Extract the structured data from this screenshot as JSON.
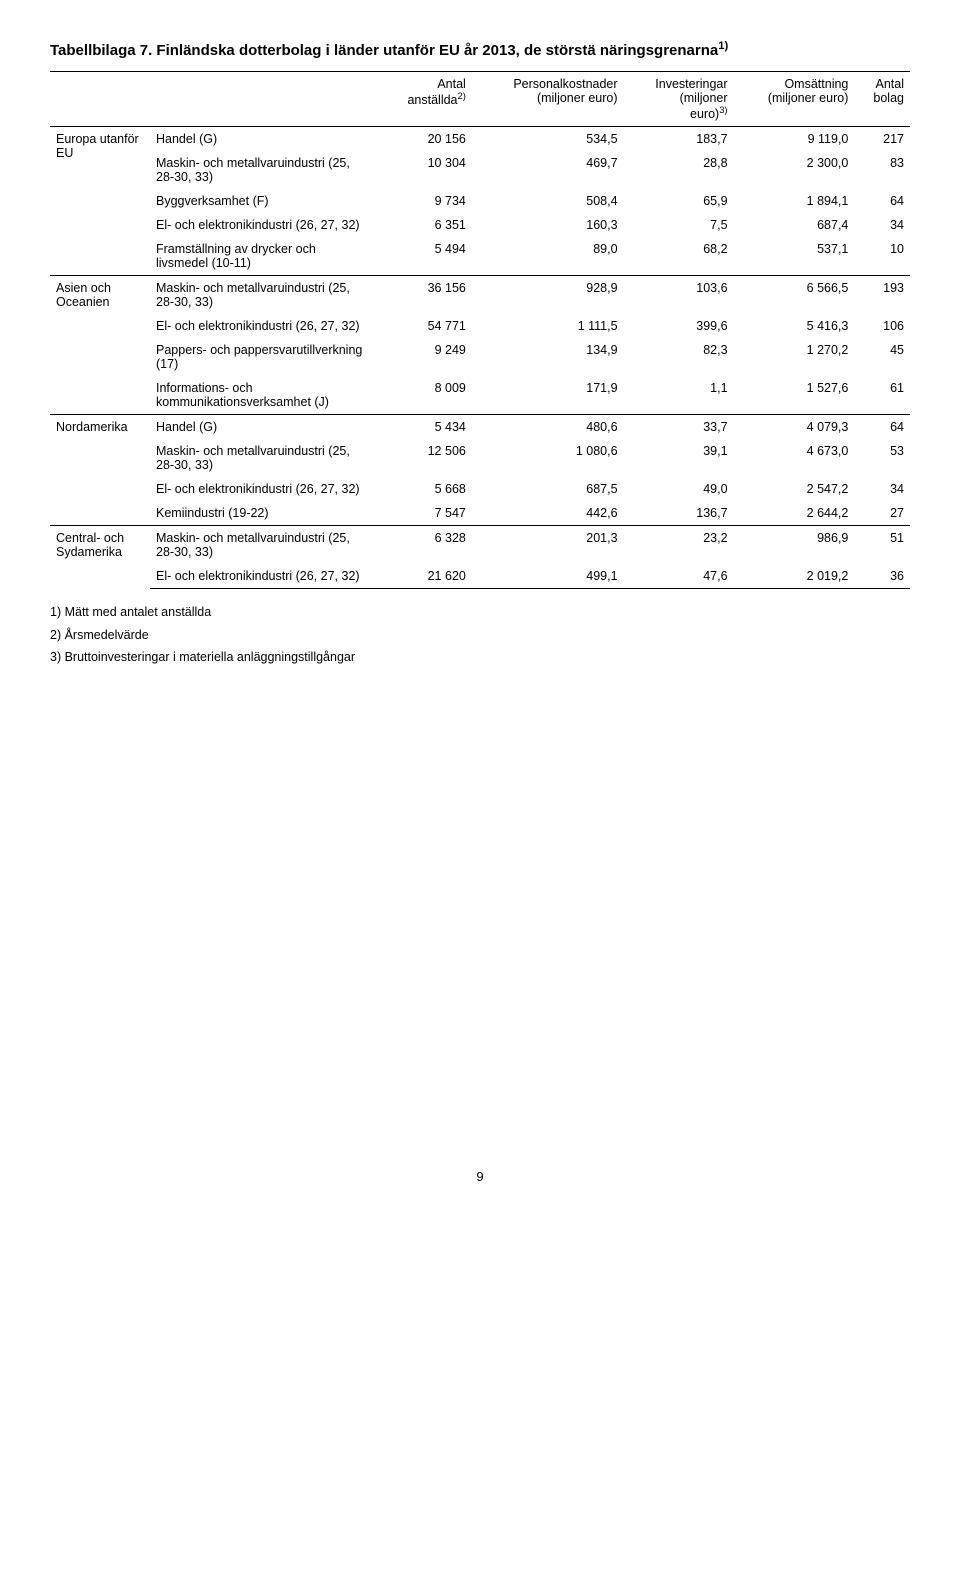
{
  "title_prefix": "Tabellbilaga 7. Finländska dotterbolag i länder utanför EU år 2013, de störstä näringsgrenarna",
  "title_sup": "1)",
  "columns": {
    "c2_line1": "Antal",
    "c2_line2": "anställda",
    "c2_sup": "2)",
    "c3_line1": "Personalkostnader",
    "c3_line2": "(miljoner euro)",
    "c4_line1": "Investeringar",
    "c4_line2": "(miljoner",
    "c4_line3": "euro)",
    "c4_sup": "3)",
    "c5_line1": "Omsättning",
    "c5_line2": "(miljoner euro)",
    "c6_line1": "Antal",
    "c6_line2": "bolag"
  },
  "regions": [
    {
      "name": "Europa utanför EU",
      "rows": [
        {
          "label": "Handel (G)",
          "v1": "20 156",
          "v2": "534,5",
          "v3": "183,7",
          "v4": "9 119,0",
          "v5": "217"
        },
        {
          "label": "Maskin- och metallvaruindustri (25, 28-30, 33)",
          "v1": "10 304",
          "v2": "469,7",
          "v3": "28,8",
          "v4": "2 300,0",
          "v5": "83"
        },
        {
          "label": "Byggverksamhet (F)",
          "v1": "9 734",
          "v2": "508,4",
          "v3": "65,9",
          "v4": "1 894,1",
          "v5": "64"
        },
        {
          "label": "El- och elektronikindustri (26, 27, 32)",
          "v1": "6 351",
          "v2": "160,3",
          "v3": "7,5",
          "v4": "687,4",
          "v5": "34"
        },
        {
          "label": "Framställning av drycker och livsmedel (10-11)",
          "v1": "5 494",
          "v2": "89,0",
          "v3": "68,2",
          "v4": "537,1",
          "v5": "10"
        }
      ]
    },
    {
      "name": "Asien och Oceanien",
      "rows": [
        {
          "label": "Maskin- och metallvaruindustri (25, 28-30, 33)",
          "v1": "36 156",
          "v2": "928,9",
          "v3": "103,6",
          "v4": "6 566,5",
          "v5": "193"
        },
        {
          "label": "El- och elektronikindustri (26, 27, 32)",
          "v1": "54 771",
          "v2": "1 111,5",
          "v3": "399,6",
          "v4": "5 416,3",
          "v5": "106"
        },
        {
          "label": "Pappers- och pappersvarutillverkning (17)",
          "v1": "9 249",
          "v2": "134,9",
          "v3": "82,3",
          "v4": "1 270,2",
          "v5": "45"
        },
        {
          "label": "Informations- och kommunikationsverksamhet (J)",
          "v1": "8 009",
          "v2": "171,9",
          "v3": "1,1",
          "v4": "1 527,6",
          "v5": "61"
        }
      ]
    },
    {
      "name": "Nordamerika",
      "rows": [
        {
          "label": "Handel (G)",
          "v1": "5 434",
          "v2": "480,6",
          "v3": "33,7",
          "v4": "4 079,3",
          "v5": "64"
        },
        {
          "label": "Maskin- och metallvaruindustri (25, 28-30, 33)",
          "v1": "12 506",
          "v2": "1 080,6",
          "v3": "39,1",
          "v4": "4 673,0",
          "v5": "53"
        },
        {
          "label": "El- och elektronikindustri (26, 27, 32)",
          "v1": "5 668",
          "v2": "687,5",
          "v3": "49,0",
          "v4": "2 547,2",
          "v5": "34"
        },
        {
          "label": "Kemiindustri (19-22)",
          "v1": "7 547",
          "v2": "442,6",
          "v3": "136,7",
          "v4": "2 644,2",
          "v5": "27"
        }
      ]
    },
    {
      "name": "Central- och Sydamerika",
      "rows": [
        {
          "label": "Maskin- och metallvaruindustri (25, 28-30, 33)",
          "v1": "6 328",
          "v2": "201,3",
          "v3": "23,2",
          "v4": "986,9",
          "v5": "51"
        },
        {
          "label": "El- och elektronikindustri (26, 27, 32)",
          "v1": "21 620",
          "v2": "499,1",
          "v3": "47,6",
          "v4": "2 019,2",
          "v5": "36"
        }
      ]
    }
  ],
  "footnotes": {
    "f1": "1) Mätt med antalet anställda",
    "f2": "2) Årsmedelvärde",
    "f3": "3) Bruttoinvesteringar i materiella anläggningstillgångar"
  },
  "page_number": "9"
}
